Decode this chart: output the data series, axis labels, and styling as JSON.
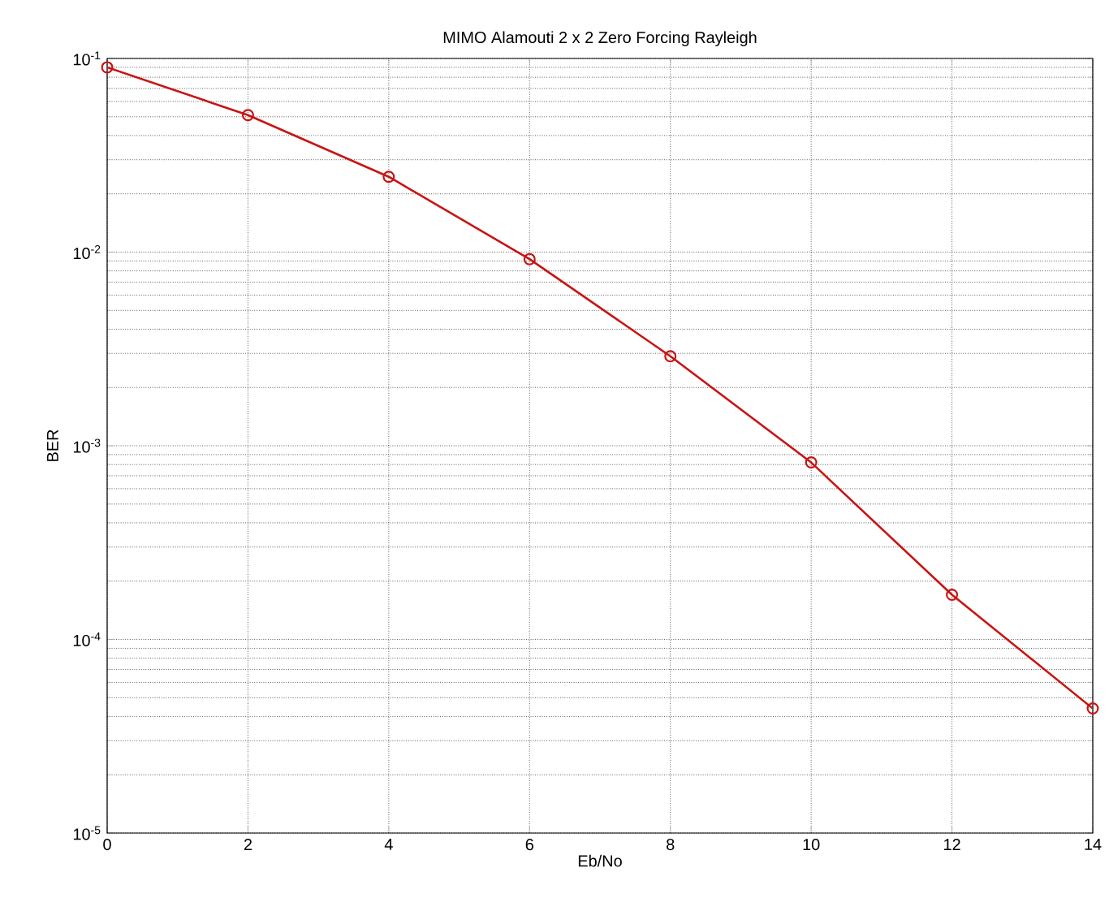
{
  "chart_data": {
    "type": "line",
    "title": "MIMO Alamouti 2 x 2 Zero Forcing Rayleigh",
    "xlabel": "Eb/No",
    "ylabel": "BER",
    "x": [
      0,
      2,
      4,
      6,
      8,
      10,
      12,
      14
    ],
    "series": [
      {
        "color": "#c81414",
        "values": [
          0.09,
          0.051,
          0.0245,
          0.0092,
          0.0029,
          0.00082,
          0.00017,
          4.4e-05
        ]
      }
    ],
    "xlim": [
      0,
      14
    ],
    "xticks": [
      0,
      2,
      4,
      6,
      8,
      10,
      12,
      14
    ],
    "ylim": [
      1e-05,
      0.1
    ],
    "yticks": [
      {
        "value": 1e-05,
        "label": "10$^{-5}$"
      },
      {
        "value": 0.0001,
        "label": "10$^{-4}$"
      },
      {
        "value": 0.001,
        "label": "10$^{-3}$"
      },
      {
        "value": 0.01,
        "label": "10$^{-2}$"
      },
      {
        "value": 0.1,
        "label": "10$^{-1}$"
      }
    ],
    "log": "y",
    "grid": true,
    "marker": "circle",
    "line_style": "solid"
  }
}
